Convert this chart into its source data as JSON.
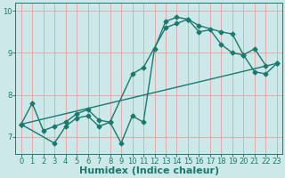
{
  "bg_color": "#cce8e8",
  "grid_color": "#e8a0a0",
  "line_color": "#1a7a6e",
  "marker": "D",
  "markersize": 2.5,
  "linewidth": 1.0,
  "xlabel": "Humidex (Indice chaleur)",
  "xlabel_fontsize": 8,
  "xlabel_fontweight": "bold",
  "ylim": [
    6.6,
    10.2
  ],
  "xlim": [
    -0.5,
    23.5
  ],
  "yticks": [
    7,
    8,
    9,
    10
  ],
  "xticks": [
    0,
    1,
    2,
    3,
    4,
    5,
    6,
    7,
    8,
    9,
    10,
    11,
    12,
    13,
    14,
    15,
    16,
    17,
    18,
    19,
    20,
    21,
    22,
    23
  ],
  "tick_fontsize": 6,
  "line1_x": [
    0,
    1,
    2,
    3,
    4,
    5,
    6,
    7,
    8,
    9,
    10,
    11,
    12,
    13,
    14,
    15,
    16,
    17,
    18,
    19,
    20,
    21,
    22
  ],
  "line1_y": [
    7.3,
    7.8,
    7.15,
    7.25,
    7.35,
    7.55,
    7.65,
    7.4,
    7.35,
    6.85,
    7.5,
    7.35,
    9.1,
    9.75,
    9.85,
    9.8,
    9.5,
    9.55,
    9.2,
    9.0,
    8.95,
    9.1,
    8.7
  ],
  "line2_x": [
    0,
    3,
    4,
    5,
    6,
    7,
    8,
    10,
    11,
    13,
    14,
    15,
    16,
    18,
    19,
    20,
    21,
    22,
    23
  ],
  "line2_y": [
    7.3,
    6.85,
    7.25,
    7.45,
    7.5,
    7.25,
    7.35,
    8.5,
    8.65,
    9.6,
    9.7,
    9.8,
    9.65,
    9.5,
    9.45,
    8.95,
    8.55,
    8.5,
    8.75
  ],
  "line3_x": [
    0,
    23
  ],
  "line3_y": [
    7.3,
    8.75
  ]
}
